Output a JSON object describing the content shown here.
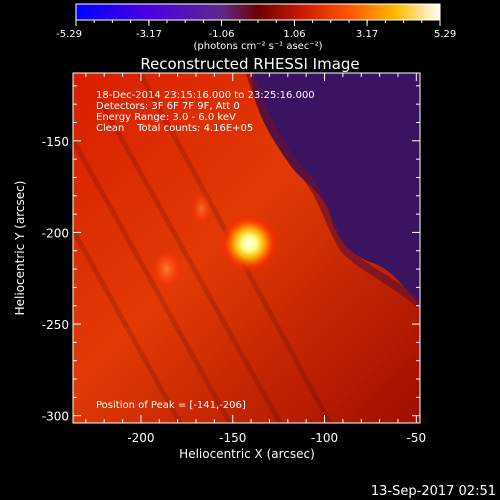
{
  "chart_data": {
    "type": "heatmap",
    "title": "Reconstructed RHESSI Image",
    "xlabel": "Heliocentric X (arcsec)",
    "ylabel": "Heliocentric Y (arcsec)",
    "xlim": [
      -237,
      -48
    ],
    "ylim": [
      -304,
      -113
    ],
    "xticks": [
      -200,
      -150,
      -100,
      -50
    ],
    "yticks": [
      -150,
      -200,
      -250,
      -300
    ],
    "colorbar": {
      "ticks": [
        "-5.29",
        "-3.17",
        "-1.06",
        "1.06",
        "3.17",
        "5.29"
      ],
      "range": [
        -5.29,
        5.29
      ],
      "label": "(photons cm⁻² s⁻¹ asec⁻²)"
    },
    "annotations": [
      "18-Dec-2014 23:15:16.000 to 23:25:16.000",
      "Detectors: 3F 6F 7F 9F, Att 0",
      "Energy Range: 3.0 - 6.0 keV",
      "Clean    Total counts: 4.16E+05"
    ],
    "peak_text": "Position of Peak = [-141,-206]",
    "peak": {
      "x": -141,
      "y": -206,
      "value": 5.29
    },
    "secondary_sources": [
      {
        "x": -186,
        "y": -220,
        "value": 2.6
      },
      {
        "x": -167,
        "y": -187,
        "value": 1.9
      }
    ],
    "background_level": 1.4,
    "negative_region_level": -1.4
  },
  "footer": {
    "timestamp": "13-Sep-2017 02:51"
  }
}
